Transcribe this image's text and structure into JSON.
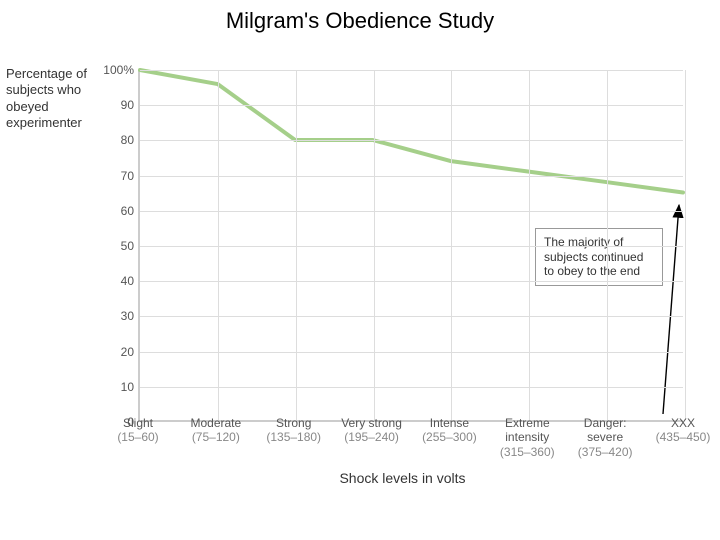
{
  "title": "Milgram's Obedience Study",
  "y_axis_label": "Percentage of subjects who obeyed experimenter",
  "x_axis_label": "Shock levels in volts",
  "chart": {
    "type": "line",
    "background_color": "#ffffff",
    "grid_color": "#dddddd",
    "axis_color": "#cccccc",
    "line_color": "#a5cf8a",
    "line_width": 4,
    "ylim": [
      0,
      100
    ],
    "ytick_step": 10,
    "yticks": [
      {
        "value": 100,
        "label": "100%"
      },
      {
        "value": 90,
        "label": "90"
      },
      {
        "value": 80,
        "label": "80"
      },
      {
        "value": 70,
        "label": "70"
      },
      {
        "value": 60,
        "label": "60"
      },
      {
        "value": 50,
        "label": "50"
      },
      {
        "value": 40,
        "label": "40"
      },
      {
        "value": 30,
        "label": "30"
      },
      {
        "value": 20,
        "label": "20"
      },
      {
        "value": 10,
        "label": "10"
      },
      {
        "value": 0,
        "label": "0"
      }
    ],
    "categories": [
      {
        "label": "Slight",
        "sublabel": "(15–60)"
      },
      {
        "label": "Moderate",
        "sublabel": "(75–120)"
      },
      {
        "label": "Strong",
        "sublabel": "(135–180)"
      },
      {
        "label": "Very strong",
        "sublabel": "(195–240)"
      },
      {
        "label": "Intense",
        "sublabel": "(255–300)"
      },
      {
        "label": "Extreme intensity",
        "sublabel": "(315–360)"
      },
      {
        "label": "Danger: severe",
        "sublabel": "(375–420)"
      },
      {
        "label": "XXX",
        "sublabel": "(435–450)"
      }
    ],
    "values": [
      100,
      96,
      80,
      80,
      74,
      71,
      68,
      65
    ],
    "annotation": {
      "text": "The majority of subjects continued to obey to the end",
      "box_bg": "#ffffff",
      "box_border": "#999999",
      "arrow_color": "#000000"
    }
  },
  "typography": {
    "title_fontsize": 22,
    "axis_label_fontsize": 13,
    "tick_fontsize": 12,
    "annotation_fontsize": 12
  }
}
